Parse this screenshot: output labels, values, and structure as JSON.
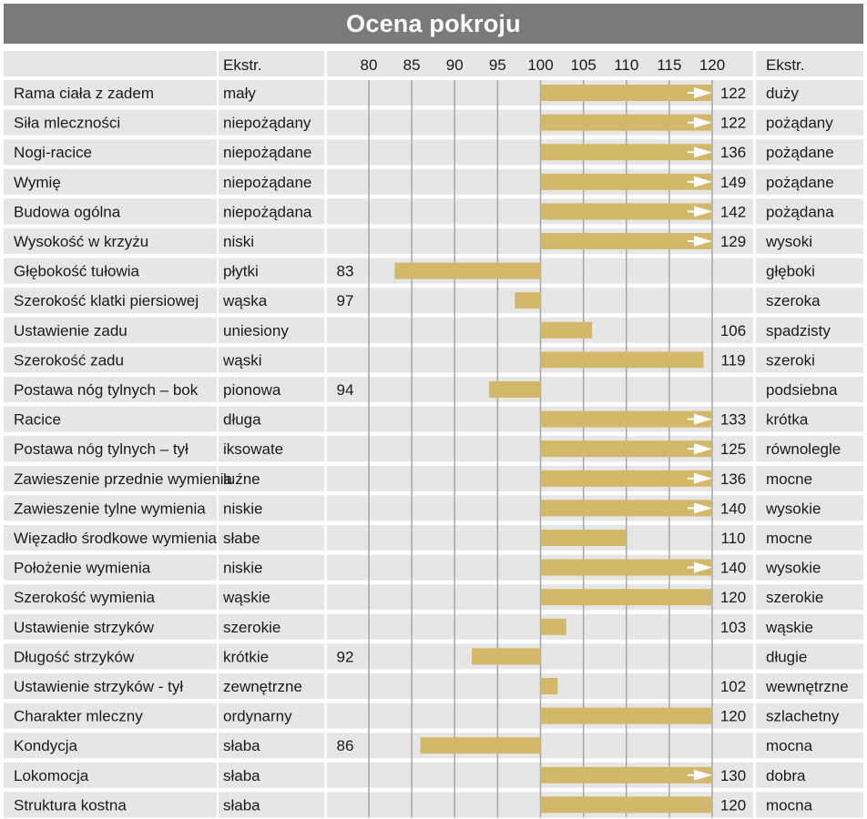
{
  "title": "Ocena pokroju",
  "header": {
    "left_extreme": "Ekstr.",
    "right_extreme": "Ekstr."
  },
  "colors": {
    "title_bg": "#7a7a7a",
    "row_bg": "#e6e6e6",
    "bar": "#d4b86a",
    "grid": "#a6a6a6",
    "arrow": "#ffffff"
  },
  "chart_data": {
    "type": "bar",
    "orientation": "horizontal",
    "baseline": 100,
    "xlim": [
      80,
      120
    ],
    "ticks": [
      80,
      85,
      90,
      95,
      100,
      105,
      110,
      115,
      120
    ],
    "tick_labels": [
      "80",
      "85",
      "90",
      "95",
      "100",
      "105",
      "110",
      "115",
      "120"
    ],
    "overflow_marker": "values above 120 are shown with an arrow at the end of the bar",
    "rows": [
      {
        "trait": "Rama ciała z zadem",
        "left": "mały",
        "right": "duży",
        "value": 122
      },
      {
        "trait": "Siła mleczności",
        "left": "niepożądany",
        "right": "pożądany",
        "value": 122
      },
      {
        "trait": "Nogi-racice",
        "left": "niepożądane",
        "right": "pożądane",
        "value": 136
      },
      {
        "trait": "Wymię",
        "left": "niepożądane",
        "right": "pożądane",
        "value": 149
      },
      {
        "trait": "Budowa ogólna",
        "left": "niepożądana",
        "right": "pożądana",
        "value": 142
      },
      {
        "trait": "Wysokość w krzyżu",
        "left": "niski",
        "right": "wysoki",
        "value": 129
      },
      {
        "trait": "Głębokość tułowia",
        "left": "płytki",
        "right": "głęboki",
        "value": 83
      },
      {
        "trait": "Szerokość klatki piersiowej",
        "left": "wąska",
        "right": "szeroka",
        "value": 97
      },
      {
        "trait": "Ustawienie zadu",
        "left": "uniesiony",
        "right": "spadzisty",
        "value": 106
      },
      {
        "trait": "Szerokość zadu",
        "left": "wąski",
        "right": "szeroki",
        "value": 119
      },
      {
        "trait": "Postawa nóg tylnych –  bok",
        "left": "pionowa",
        "right": "podsiebna",
        "value": 94
      },
      {
        "trait": "Racice",
        "left": "długa",
        "right": "krótka",
        "value": 133
      },
      {
        "trait": "Postawa nóg tylnych –  tył",
        "left": "iksowate",
        "right": "równolegle",
        "value": 125
      },
      {
        "trait": "Zawieszenie przednie wymienia",
        "left": "luźne",
        "right": "mocne",
        "value": 136
      },
      {
        "trait": "Zawieszenie tylne wymienia",
        "left": "niskie",
        "right": "wysokie",
        "value": 140
      },
      {
        "trait": "Więzadło środkowe wymienia",
        "left": "słabe",
        "right": "mocne",
        "value": 110
      },
      {
        "trait": "Położenie wymienia",
        "left": "niskie",
        "right": "wysokie",
        "value": 140
      },
      {
        "trait": "Szerokość wymienia",
        "left": "wąskie",
        "right": "szerokie",
        "value": 120
      },
      {
        "trait": "Ustawienie strzyków",
        "left": "szerokie",
        "right": "wąskie",
        "value": 103
      },
      {
        "trait": "Długość strzyków",
        "left": "krótkie",
        "right": "długie",
        "value": 92
      },
      {
        "trait": "Ustawienie strzyków - tył",
        "left": "zewnętrzne",
        "right": "wewnętrzne",
        "value": 102
      },
      {
        "trait": "Charakter mleczny",
        "left": "ordynarny",
        "right": "szlachetny",
        "value": 120
      },
      {
        "trait": "Kondycja",
        "left": "słaba",
        "right": "mocna",
        "value": 86
      },
      {
        "trait": "Lokomocja",
        "left": "słaba",
        "right": "dobra",
        "value": 130
      },
      {
        "trait": "Struktura kostna",
        "left": "słaba",
        "right": "mocna",
        "value": 120
      }
    ]
  }
}
